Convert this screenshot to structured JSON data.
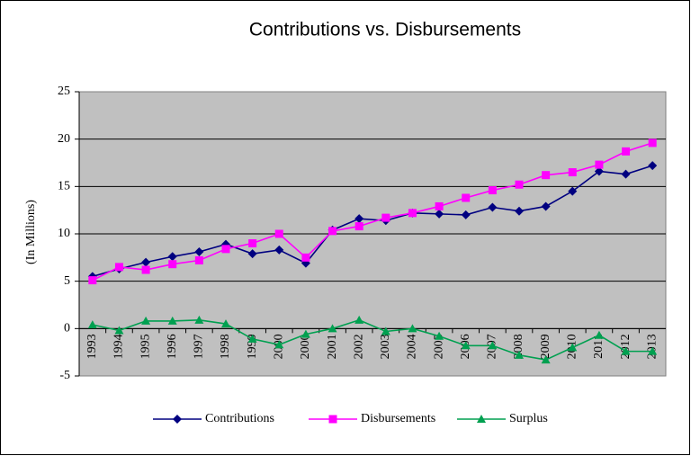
{
  "chart_data": {
    "type": "line",
    "title": "Contributions vs. Disbursements",
    "y_label": "(In Millions)",
    "categories": [
      "1993",
      "1994",
      "1995",
      "1996",
      "1997",
      "1998",
      "1999",
      "2000",
      "2000",
      "2001",
      "2002",
      "2003",
      "2004",
      "2005",
      "2006",
      "2007",
      "2008",
      "2009",
      "2010",
      "2011",
      "2012",
      "2013"
    ],
    "series": [
      {
        "name": "Contributions",
        "color": "#000080",
        "marker": "diamond",
        "values": [
          5.5,
          6.3,
          7.0,
          7.6,
          8.1,
          8.9,
          7.9,
          8.3,
          6.9,
          10.4,
          11.6,
          11.4,
          12.2,
          12.1,
          12.0,
          12.8,
          12.4,
          12.9,
          14.5,
          16.6,
          16.3,
          17.2
        ]
      },
      {
        "name": "Disbursements",
        "color": "#ff00ff",
        "marker": "square",
        "values": [
          5.1,
          6.5,
          6.2,
          6.8,
          7.2,
          8.4,
          9.0,
          10.0,
          7.5,
          10.3,
          10.8,
          11.7,
          12.2,
          12.9,
          13.8,
          14.6,
          15.2,
          16.2,
          16.5,
          17.3,
          18.7,
          19.6
        ]
      },
      {
        "name": "Surplus",
        "color": "#00a050",
        "marker": "triangle",
        "values": [
          0.4,
          -0.2,
          0.8,
          0.8,
          0.9,
          0.5,
          -1.1,
          -1.7,
          -0.6,
          0.0,
          0.9,
          -0.3,
          0.0,
          -0.8,
          -1.8,
          -1.8,
          -2.8,
          -3.3,
          -2.0,
          -0.7,
          -2.4,
          -2.4
        ]
      }
    ],
    "ylim": [
      -5,
      25
    ],
    "yticks": [
      -5,
      0,
      5,
      10,
      15,
      20,
      25
    ],
    "grid": true,
    "legend": "bottom"
  }
}
